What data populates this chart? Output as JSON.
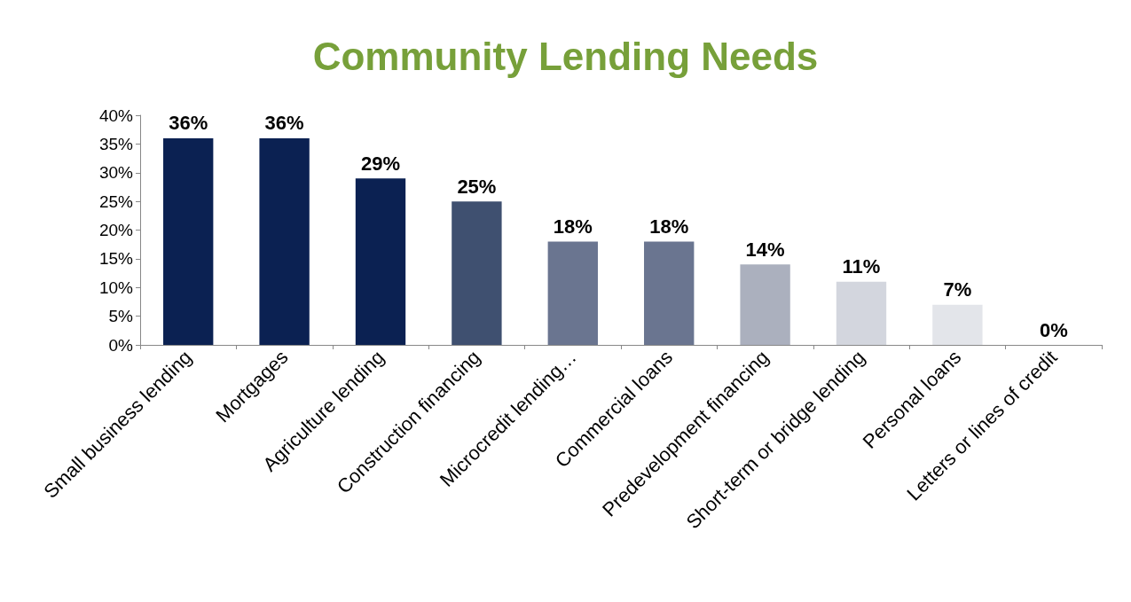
{
  "chart_data": {
    "type": "bar",
    "title": "Community Lending Needs",
    "categories": [
      "Small business lending",
      "Mortgages",
      "Agriculture lending",
      "Construction financing",
      "Microcredit lending…",
      "Commercial loans",
      "Predevelopment financing",
      "Short-term or bridge lending",
      "Personal loans",
      "Letters or lines of credit"
    ],
    "values": [
      36,
      36,
      29,
      25,
      18,
      18,
      14,
      11,
      7,
      0
    ],
    "colors": [
      "#0b2152",
      "#0b2152",
      "#0b2152",
      "#3f5070",
      "#6a7590",
      "#6a7590",
      "#abb0be",
      "#d3d6de",
      "#e3e5ea",
      "#e3e5ea"
    ],
    "value_labels": [
      "36%",
      "36%",
      "29%",
      "25%",
      "18%",
      "18%",
      "14%",
      "11%",
      "7%",
      "0%"
    ],
    "ylim": [
      0,
      40
    ],
    "yticks": [
      {
        "value": 0,
        "label": "0%"
      },
      {
        "value": 5,
        "label": "5%"
      },
      {
        "value": 10,
        "label": "10%"
      },
      {
        "value": 15,
        "label": "15%"
      },
      {
        "value": 20,
        "label": "20%"
      },
      {
        "value": 25,
        "label": "25%"
      },
      {
        "value": 30,
        "label": "30%"
      },
      {
        "value": 35,
        "label": "35%"
      },
      {
        "value": 40,
        "label": "40%"
      }
    ],
    "grid": false
  }
}
